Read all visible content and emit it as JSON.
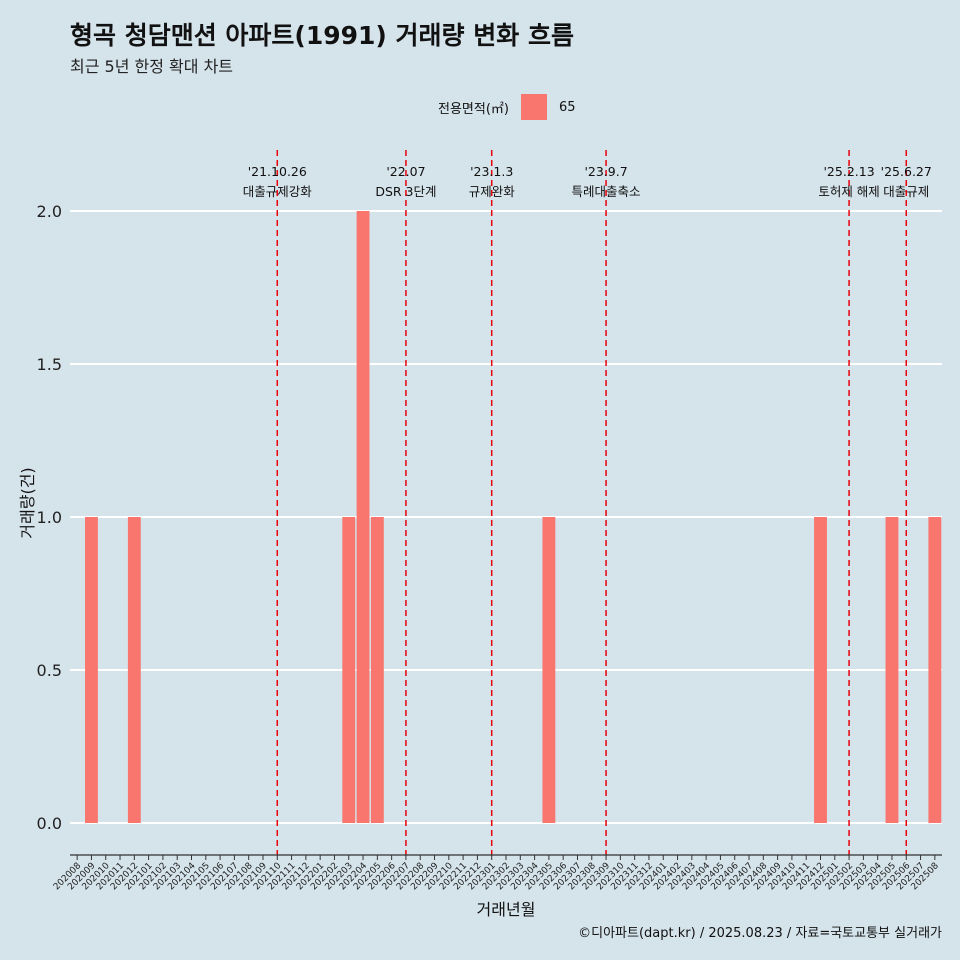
{
  "colors": {
    "background": "#d5e3eb",
    "bar": "#f8766d",
    "event_line": "#e8000b",
    "grid": "#ffffff"
  },
  "chart_data": {
    "type": "bar",
    "title": "형곡 청담맨션 아파트(1991) 거래량 변화 흐름",
    "subtitle": "최근 5년 한정 확대 차트",
    "xlabel": "거래년월",
    "ylabel": "거래량(건)",
    "ylim": [
      -0.15,
      2.2
    ],
    "yticks": [
      "0.0",
      "0.5",
      "1.0",
      "1.5",
      "2.0"
    ],
    "grid": true,
    "legend": {
      "title": "전용면적(㎡)",
      "position": "top",
      "entries": [
        "65"
      ]
    },
    "categories": [
      "202008",
      "202009",
      "202010",
      "202011",
      "202012",
      "202101",
      "202102",
      "202103",
      "202104",
      "202105",
      "202106",
      "202107",
      "202108",
      "202109",
      "202110",
      "202111",
      "202112",
      "202201",
      "202202",
      "202203",
      "202204",
      "202205",
      "202206",
      "202207",
      "202208",
      "202209",
      "202210",
      "202211",
      "202212",
      "202301",
      "202302",
      "202303",
      "202304",
      "202305",
      "202306",
      "202307",
      "202308",
      "202309",
      "202310",
      "202311",
      "202312",
      "202401",
      "202402",
      "202403",
      "202404",
      "202405",
      "202406",
      "202407",
      "202408",
      "202409",
      "202410",
      "202411",
      "202412",
      "202501",
      "202502",
      "202503",
      "202504",
      "202505",
      "202506",
      "202507",
      "202508"
    ],
    "series": [
      {
        "name": "65",
        "values": [
          0,
          1,
          0,
          0,
          1,
          0,
          0,
          0,
          0,
          0,
          0,
          0,
          0,
          0,
          0,
          0,
          0,
          0,
          0,
          1,
          2,
          1,
          0,
          0,
          0,
          0,
          0,
          0,
          0,
          0,
          0,
          0,
          0,
          1,
          0,
          0,
          0,
          0,
          0,
          0,
          0,
          0,
          0,
          0,
          0,
          0,
          0,
          0,
          0,
          0,
          0,
          0,
          1,
          0,
          0,
          0,
          0,
          1,
          0,
          0,
          1
        ]
      }
    ],
    "events": [
      {
        "date": "'21.10.26",
        "label": "대출규제강화",
        "at": "202110"
      },
      {
        "date": "'22.07",
        "label": "DSR 3단계",
        "at": "202207"
      },
      {
        "date": "'23.1.3",
        "label": "규제완화",
        "at": "202301"
      },
      {
        "date": "'23.9.7",
        "label": "특례대출축소",
        "at": "202309"
      },
      {
        "date": "'25.2.13",
        "label": "토허제 해제",
        "at": "202502"
      },
      {
        "date": "'25.6.27",
        "label": "대출규제",
        "at": "202506"
      }
    ],
    "caption": "©디아파트(dapt.kr) / 2025.08.23 / 자료=국토교통부 실거래가"
  }
}
